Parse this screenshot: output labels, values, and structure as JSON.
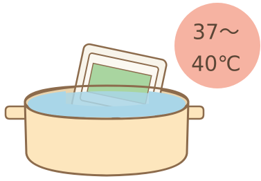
{
  "badge": {
    "lines": [
      "37～",
      "40℃"
    ]
  }
}
